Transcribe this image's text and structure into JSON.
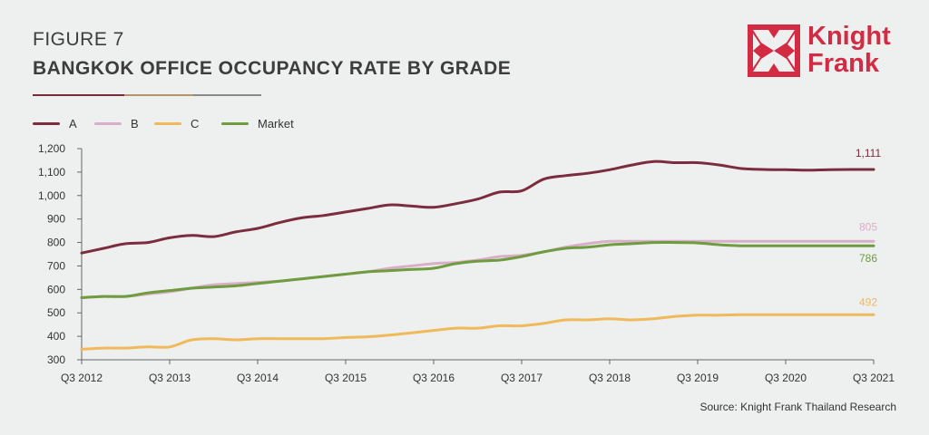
{
  "header": {
    "figure_number": "FIGURE 7",
    "title": "BANGKOK OFFICE OCCUPANCY RATE BY GRADE"
  },
  "logo": {
    "line1": "Knight",
    "line2": "Frank",
    "color": "#d22b43"
  },
  "source": "Source: Knight Frank Thailand Research",
  "chart_data": {
    "type": "line",
    "title": "BANGKOK OFFICE OCCUPANCY RATE BY GRADE",
    "xlabel": "",
    "ylabel": "",
    "ylim": [
      300,
      1200
    ],
    "yticks": [
      300,
      400,
      500,
      600,
      700,
      800,
      900,
      1000,
      1100,
      1200
    ],
    "ytick_labels": [
      "300",
      "400",
      "500",
      "600",
      "700",
      "800",
      "900",
      "1,000",
      "1,100",
      "1,200"
    ],
    "x_tick_labels": [
      "Q3 2012",
      "Q3 2013",
      "Q3 2014",
      "Q3 2015",
      "Q3 2016",
      "Q3 2017",
      "Q3 2018",
      "Q3 2019",
      "Q3 2020",
      "Q3 2021"
    ],
    "x_tick_periods": [
      0,
      4,
      8,
      12,
      16,
      20,
      24,
      28,
      32,
      36
    ],
    "grid": false,
    "legend_position": "top-left",
    "series": [
      {
        "name": "A",
        "color": "#7b2d3e",
        "values": [
          755,
          775,
          795,
          800,
          820,
          830,
          825,
          845,
          860,
          885,
          905,
          915,
          930,
          945,
          960,
          955,
          950,
          965,
          985,
          1015,
          1020,
          1070,
          1085,
          1095,
          1110,
          1130,
          1145,
          1140,
          1140,
          1130,
          1115,
          1111,
          1110,
          1108,
          1110,
          1111,
          1111
        ],
        "end_label": "1,111"
      },
      {
        "name": "B",
        "color": "#d9aec8",
        "values": [
          565,
          570,
          570,
          580,
          590,
          605,
          620,
          625,
          630,
          635,
          645,
          655,
          665,
          675,
          690,
          700,
          710,
          715,
          725,
          740,
          745,
          760,
          780,
          795,
          805,
          805,
          805,
          805,
          805,
          805,
          805,
          805,
          805,
          805,
          805,
          805,
          805
        ],
        "end_label": "805"
      },
      {
        "name": "C",
        "color": "#f0b95a",
        "values": [
          345,
          350,
          350,
          355,
          355,
          385,
          390,
          385,
          390,
          390,
          390,
          390,
          395,
          398,
          405,
          415,
          425,
          435,
          435,
          445,
          445,
          455,
          470,
          470,
          475,
          470,
          475,
          485,
          490,
          490,
          492,
          492,
          492,
          492,
          492,
          492,
          492
        ],
        "end_label": "492"
      },
      {
        "name": "Market",
        "color": "#6e9c3e",
        "values": [
          565,
          570,
          570,
          585,
          595,
          605,
          610,
          615,
          625,
          635,
          645,
          655,
          665,
          675,
          680,
          685,
          690,
          710,
          720,
          725,
          740,
          760,
          775,
          780,
          790,
          795,
          800,
          800,
          798,
          790,
          786,
          786,
          786,
          786,
          786,
          786,
          786
        ],
        "end_label": "786"
      }
    ]
  }
}
